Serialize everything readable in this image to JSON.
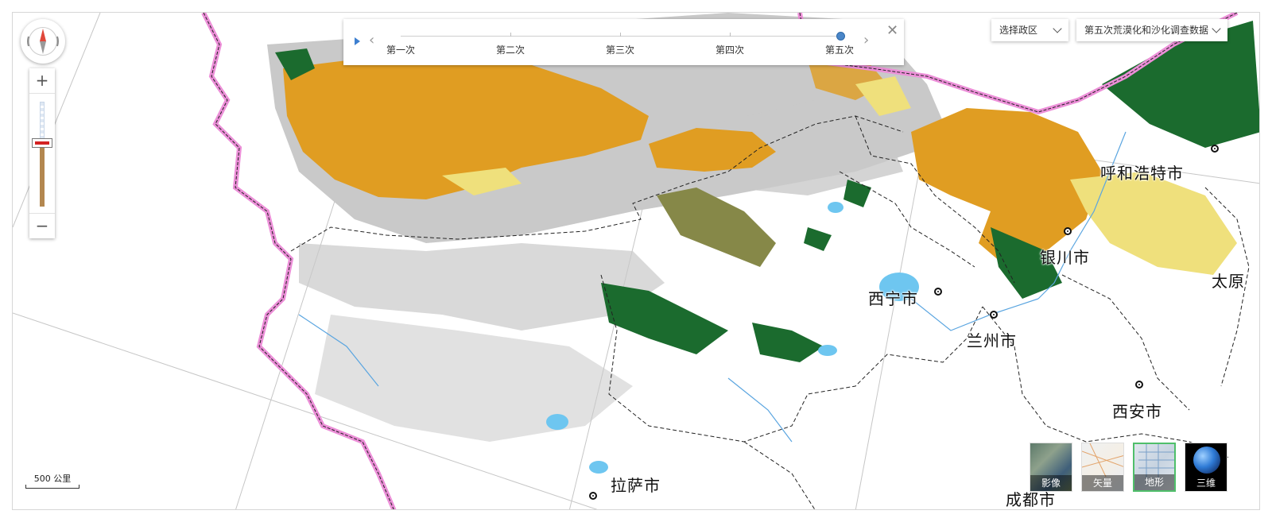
{
  "map": {
    "cities": [
      {
        "name": "呼和浩特市"
      },
      {
        "name": "银川市"
      },
      {
        "name": "西宁市"
      },
      {
        "name": "兰州市"
      },
      {
        "name": "西安市"
      },
      {
        "name": "拉萨市"
      },
      {
        "name": "成都市"
      },
      {
        "name": "太原"
      }
    ],
    "colors": {
      "sand_orange": "#e09d22",
      "green": "#1b6b2e",
      "yellow": "#efe07c",
      "gray": "#c8c8c8",
      "olive": "#8a8a44",
      "water": "#6ec6f0",
      "border_pink": "#ec8fd8"
    }
  },
  "timeline": {
    "labels": [
      "第一次",
      "第二次",
      "第三次",
      "第四次",
      "第五次"
    ],
    "selected": "第五次"
  },
  "controls": {
    "zoom_in": "+",
    "zoom_out": "−",
    "region_select": "选择政区",
    "dataset_select": "第五次荒漠化和沙化调查数据"
  },
  "scale": {
    "label": "500 公里"
  },
  "base_layers": {
    "imagery": "影像",
    "vector": "矢量",
    "terrain": "地形",
    "three_d": "三维",
    "selected": "地形"
  },
  "icons": {
    "compass": "compass-icon",
    "play": "play-icon",
    "prev": "chevron-left-icon",
    "next": "chevron-right-icon",
    "close": "close-icon",
    "dropdown": "chevron-down-icon"
  }
}
